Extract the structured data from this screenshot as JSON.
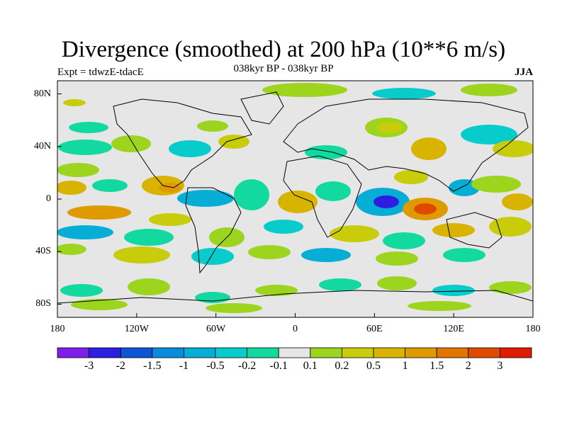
{
  "title": "Divergence (smoothed) at 200 hPa (10**6 m/s)",
  "subtitle": "038kyr BP - 038kyr BP",
  "experiment_label": "Expt = tdwzE-tdacE",
  "season": "JJA",
  "lat_ticks": [
    {
      "label": "80N",
      "value": 80
    },
    {
      "label": "40N",
      "value": 40
    },
    {
      "label": "0",
      "value": 0
    },
    {
      "label": "40S",
      "value": -40
    },
    {
      "label": "80S",
      "value": -80
    }
  ],
  "lon_ticks": [
    {
      "label": "180",
      "value": -180
    },
    {
      "label": "120W",
      "value": -120
    },
    {
      "label": "60W",
      "value": -60
    },
    {
      "label": "0",
      "value": 0
    },
    {
      "label": "60E",
      "value": 60
    },
    {
      "label": "120E",
      "value": 120
    },
    {
      "label": "180",
      "value": 180
    }
  ],
  "colorbar": {
    "colors": [
      "#7f20e8",
      "#2e1ee0",
      "#0b55d6",
      "#0a8bdc",
      "#06aed6",
      "#08cccc",
      "#12d9a0",
      "#e6e6e6",
      "#9cd41e",
      "#c8cc0a",
      "#d8b400",
      "#df9a00",
      "#e07500",
      "#e04a00",
      "#e01c00"
    ],
    "labels": [
      "-3",
      "-2",
      "-1.5",
      "-1",
      "-0.5",
      "-0.2",
      "-0.1",
      "0.1",
      "0.2",
      "0.5",
      "1",
      "1.5",
      "2",
      "3"
    ]
  },
  "colors": {
    "neutral": "#e6e6e6",
    "coastline": "#000000"
  }
}
